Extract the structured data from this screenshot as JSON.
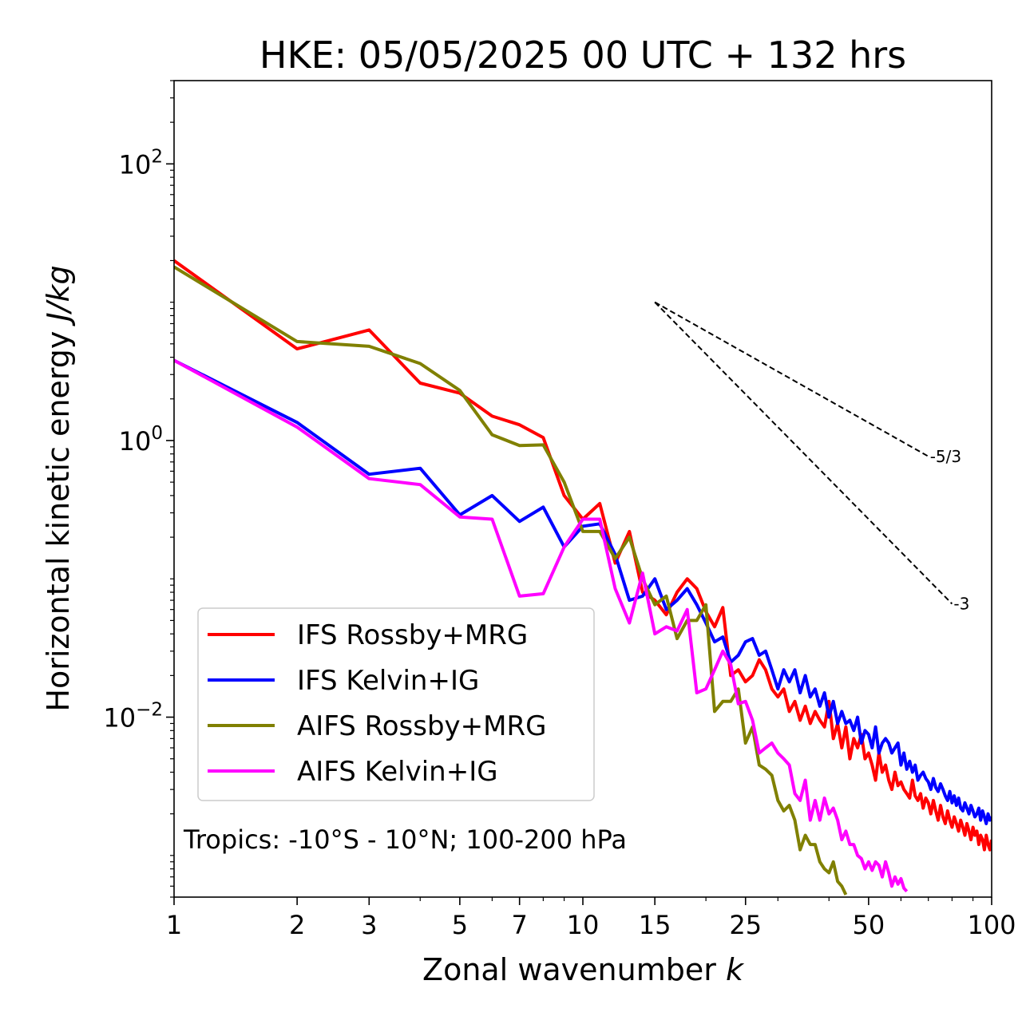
{
  "chart_data": {
    "type": "line",
    "title": "HKE: 05/05/2025 00 UTC + 132 hrs",
    "xlabel_prefix": "Zonal wavenumber ",
    "xlabel_var": "k",
    "ylabel_prefix": "Horizontal kinetic energy ",
    "ylabel_unit": "J/kg",
    "x_scale": "log",
    "y_scale": "log",
    "xlim": [
      1,
      100
    ],
    "ylim": [
      0.0005,
      400
    ],
    "x_ticks": [
      {
        "value": 1,
        "label": "1"
      },
      {
        "value": 2,
        "label": "2"
      },
      {
        "value": 3,
        "label": "3"
      },
      {
        "value": 5,
        "label": "5"
      },
      {
        "value": 7,
        "label": "7"
      },
      {
        "value": 10,
        "label": "10"
      },
      {
        "value": 15,
        "label": "15"
      },
      {
        "value": 25,
        "label": "25"
      },
      {
        "value": 50,
        "label": "50"
      },
      {
        "value": 100,
        "label": "100"
      }
    ],
    "y_ticks": [
      {
        "value": 100,
        "base": "10",
        "exp": "2"
      },
      {
        "value": 1,
        "base": "10",
        "exp": "0"
      },
      {
        "value": 0.01,
        "base": "10",
        "exp": "−2"
      }
    ],
    "grid": false,
    "legend_position": "lower-left",
    "annotation": "Tropics: -10°S - 10°N; 100-200 hPa",
    "reference_slopes": [
      {
        "label": "-5/3",
        "x": [
          15,
          70
        ],
        "y": [
          10.0,
          0.768
        ]
      },
      {
        "label": "-3",
        "x": [
          15,
          80
        ],
        "y": [
          10.0,
          0.066
        ]
      }
    ],
    "series": [
      {
        "name": "IFS Rossby+MRG",
        "color": "#ff0000",
        "x": [
          1,
          2,
          3,
          4,
          5,
          6,
          7,
          8,
          9,
          10,
          11,
          12,
          13,
          14,
          15,
          16,
          17,
          18,
          19,
          20,
          21,
          22,
          23,
          24,
          25,
          26,
          27,
          28,
          29,
          30,
          31,
          32,
          33,
          34,
          35,
          36,
          37,
          38,
          39,
          40,
          41,
          42,
          43,
          44,
          45,
          46,
          47,
          48,
          49,
          50,
          51,
          52,
          53,
          54,
          55,
          56,
          57,
          58,
          59,
          60,
          61,
          62,
          63,
          64,
          65,
          66,
          67,
          68,
          69,
          70,
          71,
          72,
          73,
          74,
          75,
          76,
          77,
          78,
          79,
          80,
          81,
          82,
          83,
          84,
          85,
          86,
          87,
          88,
          89,
          90,
          91,
          92,
          93,
          94,
          95,
          96,
          97,
          98,
          99,
          100
        ],
        "y": [
          20,
          4.6,
          6.3,
          2.6,
          2.2,
          1.5,
          1.3,
          1.05,
          0.4,
          0.27,
          0.35,
          0.13,
          0.22,
          0.08,
          0.07,
          0.055,
          0.08,
          0.1,
          0.085,
          0.058,
          0.045,
          0.062,
          0.02,
          0.022,
          0.018,
          0.02,
          0.026,
          0.022,
          0.016,
          0.014,
          0.016,
          0.011,
          0.013,
          0.0095,
          0.012,
          0.009,
          0.011,
          0.0095,
          0.0085,
          0.013,
          0.007,
          0.009,
          0.006,
          0.0085,
          0.005,
          0.007,
          0.006,
          0.0075,
          0.005,
          0.0055,
          0.0045,
          0.0035,
          0.0055,
          0.004,
          0.0045,
          0.0035,
          0.003,
          0.004,
          0.0032,
          0.0034,
          0.003,
          0.0028,
          0.0026,
          0.0035,
          0.0027,
          0.0025,
          0.0028,
          0.0022,
          0.0026,
          0.0024,
          0.002,
          0.0025,
          0.0021,
          0.0018,
          0.0023,
          0.0019,
          0.0017,
          0.0021,
          0.0018,
          0.0016,
          0.0019,
          0.0017,
          0.0015,
          0.0018,
          0.0016,
          0.0014,
          0.0017,
          0.0015,
          0.0013,
          0.0016,
          0.0014,
          0.0015,
          0.0012,
          0.0014,
          0.0013,
          0.0011,
          0.0014,
          0.0012,
          0.0011,
          0.0013
        ]
      },
      {
        "name": "IFS Kelvin+IG",
        "color": "#0000ff",
        "x": [
          1,
          2,
          3,
          4,
          5,
          6,
          7,
          8,
          9,
          10,
          11,
          12,
          13,
          14,
          15,
          16,
          17,
          18,
          19,
          20,
          21,
          22,
          23,
          24,
          25,
          26,
          27,
          28,
          29,
          30,
          31,
          32,
          33,
          34,
          35,
          36,
          37,
          38,
          39,
          40,
          41,
          42,
          43,
          44,
          45,
          46,
          47,
          48,
          49,
          50,
          51,
          52,
          53,
          54,
          55,
          56,
          57,
          58,
          59,
          60,
          61,
          62,
          63,
          64,
          65,
          66,
          67,
          68,
          69,
          70,
          71,
          72,
          73,
          74,
          75,
          76,
          77,
          78,
          79,
          80,
          81,
          82,
          83,
          84,
          85,
          86,
          87,
          88,
          89,
          90,
          91,
          92,
          93,
          94,
          95,
          96,
          97,
          98,
          99,
          100
        ],
        "y": [
          3.8,
          1.35,
          0.57,
          0.63,
          0.29,
          0.4,
          0.26,
          0.33,
          0.17,
          0.24,
          0.25,
          0.15,
          0.07,
          0.075,
          0.1,
          0.06,
          0.07,
          0.085,
          0.065,
          0.048,
          0.035,
          0.038,
          0.025,
          0.028,
          0.035,
          0.037,
          0.028,
          0.03,
          0.022,
          0.016,
          0.022,
          0.018,
          0.022,
          0.015,
          0.02,
          0.014,
          0.016,
          0.012,
          0.015,
          0.01,
          0.013,
          0.009,
          0.011,
          0.009,
          0.0095,
          0.008,
          0.01,
          0.0065,
          0.008,
          0.0075,
          0.006,
          0.0085,
          0.0055,
          0.0065,
          0.007,
          0.0065,
          0.0055,
          0.006,
          0.0065,
          0.0045,
          0.0055,
          0.0042,
          0.0048,
          0.004,
          0.0045,
          0.0035,
          0.0038,
          0.004,
          0.0036,
          0.0034,
          0.003,
          0.0036,
          0.0031,
          0.0029,
          0.0033,
          0.003,
          0.0027,
          0.0025,
          0.0029,
          0.0024,
          0.0027,
          0.0023,
          0.0026,
          0.0022,
          0.0021,
          0.0024,
          0.0022,
          0.002,
          0.0023,
          0.0021,
          0.0019,
          0.002,
          0.0022,
          0.0018,
          0.0021,
          0.0019,
          0.0017,
          0.002,
          0.0018,
          0.0019
        ]
      },
      {
        "name": "AIFS Rossby+MRG",
        "color": "#808000",
        "x": [
          1,
          2,
          3,
          4,
          5,
          6,
          7,
          8,
          9,
          10,
          11,
          12,
          13,
          14,
          15,
          16,
          17,
          18,
          19,
          20,
          21,
          22,
          23,
          24,
          25,
          26,
          27,
          28,
          29,
          30,
          31,
          32,
          33,
          34,
          35,
          36,
          37,
          38,
          39,
          40,
          41,
          42,
          43,
          44
        ],
        "y": [
          18,
          5.2,
          4.8,
          3.6,
          2.3,
          1.1,
          0.92,
          0.93,
          0.5,
          0.22,
          0.22,
          0.14,
          0.2,
          0.1,
          0.065,
          0.075,
          0.037,
          0.05,
          0.05,
          0.065,
          0.011,
          0.013,
          0.013,
          0.016,
          0.0065,
          0.0085,
          0.0045,
          0.0042,
          0.0038,
          0.0025,
          0.0021,
          0.0023,
          0.0018,
          0.0011,
          0.0014,
          0.0012,
          0.0012,
          0.0009,
          0.0008,
          0.00075,
          0.0009,
          0.00065,
          0.0006,
          0.00052
        ]
      },
      {
        "name": "AIFS Kelvin+IG",
        "color": "#ff00ff",
        "x": [
          1,
          2,
          3,
          4,
          5,
          6,
          7,
          8,
          9,
          10,
          11,
          12,
          13,
          14,
          15,
          16,
          17,
          18,
          19,
          20,
          21,
          22,
          23,
          24,
          25,
          26,
          27,
          28,
          29,
          30,
          31,
          32,
          33,
          34,
          35,
          36,
          37,
          38,
          39,
          40,
          41,
          42,
          43,
          44,
          45,
          46,
          47,
          48,
          49,
          50,
          51,
          52,
          53,
          54,
          55,
          56,
          57,
          58,
          59,
          60,
          61,
          62
        ],
        "y": [
          3.8,
          1.25,
          0.53,
          0.48,
          0.28,
          0.27,
          0.075,
          0.078,
          0.17,
          0.27,
          0.27,
          0.085,
          0.048,
          0.11,
          0.04,
          0.045,
          0.042,
          0.06,
          0.015,
          0.016,
          0.022,
          0.03,
          0.024,
          0.0125,
          0.013,
          0.0095,
          0.0055,
          0.006,
          0.0065,
          0.0055,
          0.005,
          0.0045,
          0.0028,
          0.0025,
          0.0035,
          0.0018,
          0.0025,
          0.0018,
          0.0026,
          0.002,
          0.0022,
          0.0018,
          0.0013,
          0.0015,
          0.0012,
          0.0012,
          0.001,
          0.00095,
          0.0008,
          0.0009,
          0.00078,
          0.0009,
          0.00085,
          0.0007,
          0.0009,
          0.00075,
          0.0006,
          0.0007,
          0.00062,
          0.00068,
          0.00058,
          0.00055
        ]
      }
    ]
  }
}
